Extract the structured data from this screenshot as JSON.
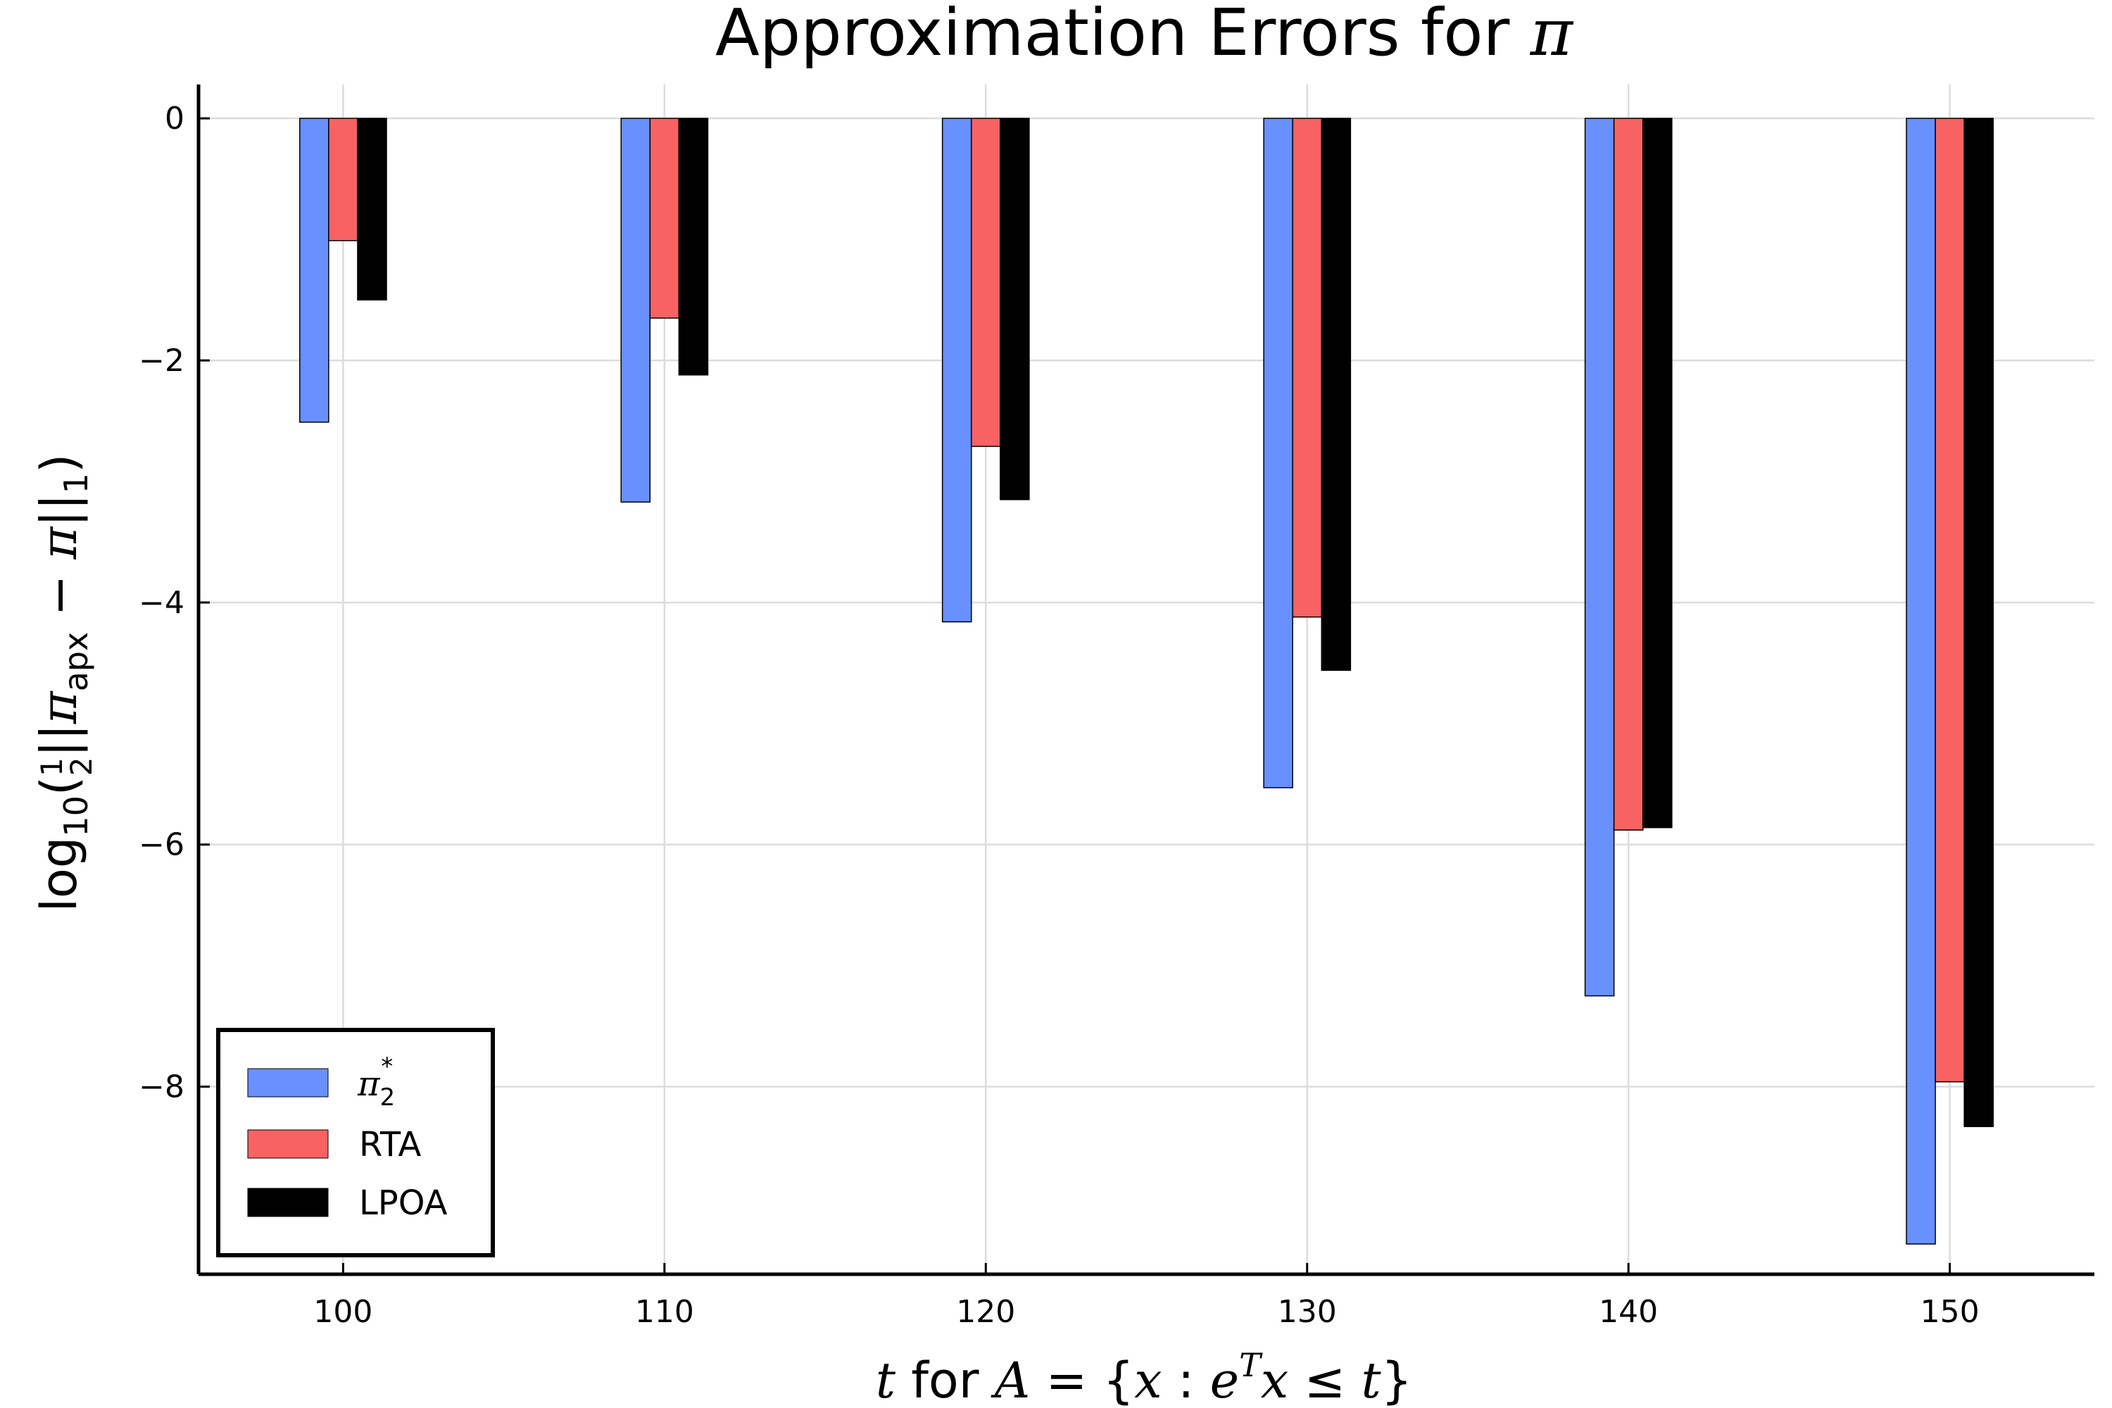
{
  "chart_data": {
    "type": "bar",
    "title": {
      "text": "Approximation Errors for ",
      "symbol": "π"
    },
    "xlabel": {
      "t": "t",
      "for": "for",
      "A": "A",
      "eq": "=",
      "lbrace": "{",
      "x1": "x",
      "colon": ":",
      "e": "e",
      "T": "T",
      "x2": "x",
      "leq": "≤",
      "t2": "t",
      "rbrace": "}"
    },
    "ylabel": {
      "log": "log",
      "base": "10",
      "open": "(",
      "num": "1",
      "den": "2",
      "pipes1": "||",
      "pi1": "π",
      "apx": "apx",
      "minus": " − ",
      "pi2": "π",
      "pipes2": "||",
      "one": "1",
      "close": ")"
    },
    "x": [
      100,
      110,
      120,
      130,
      140,
      150
    ],
    "xlim": [
      95.5,
      154.5
    ],
    "ylim": [
      -9.55,
      0.28
    ],
    "yticks": [
      0,
      -2,
      -4,
      -6,
      -8
    ],
    "ytick_labels": [
      "0",
      "−2",
      "−4",
      "−6",
      "−8"
    ],
    "grid": true,
    "legend_position": "bottom-left",
    "series": [
      {
        "name": {
          "sym": "π",
          "sub": "2",
          "sup": "*"
        },
        "color": "#6890ff",
        "values": [
          -2.51,
          -3.17,
          -4.16,
          -5.53,
          -7.25,
          -9.3
        ]
      },
      {
        "name": "RTA",
        "color": "#f86262",
        "values": [
          -1.01,
          -1.65,
          -2.71,
          -4.12,
          -5.88,
          -7.96
        ]
      },
      {
        "name": "LPOA",
        "color": "#000000",
        "values": [
          -1.5,
          -2.12,
          -3.15,
          -4.56,
          -5.86,
          -8.33
        ]
      }
    ]
  }
}
